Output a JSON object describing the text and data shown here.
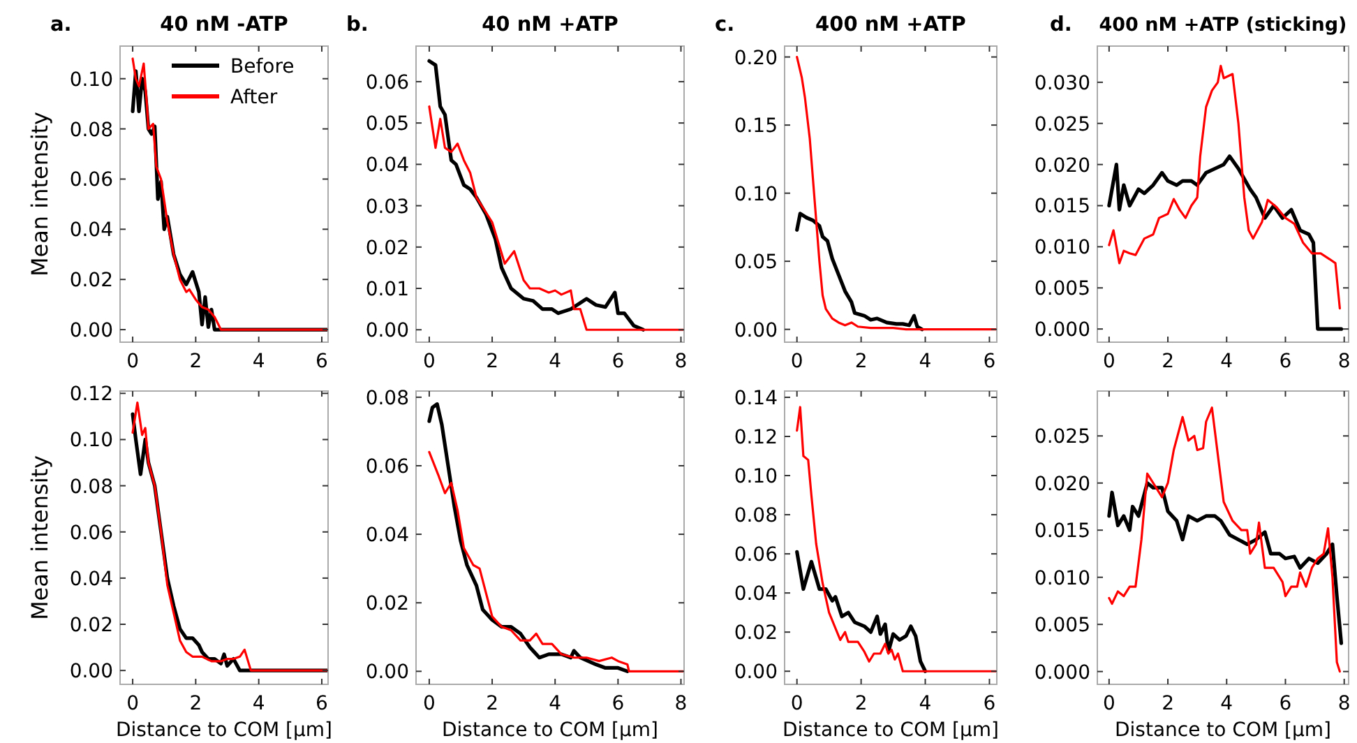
{
  "chart_data": [
    {
      "type": "line",
      "title": "40 nM -ATP",
      "annotations": [
        "a."
      ],
      "ylabel": "Mean intensity",
      "legend": "top right",
      "grid": false,
      "xlim": [
        -0.4,
        6.2
      ],
      "ylim": [
        -0.005,
        0.113
      ],
      "xticks": [
        0,
        2,
        4,
        6
      ],
      "yticks": [
        {
          "value": 0,
          "label": "0.00"
        },
        {
          "value": 0.02,
          "label": "0.02"
        },
        {
          "value": 0.04,
          "label": "0.04"
        },
        {
          "value": 0.06,
          "label": "0.06"
        },
        {
          "value": 0.08,
          "label": "0.08"
        },
        {
          "value": 0.1,
          "label": "0.10"
        }
      ],
      "series": [
        {
          "name": "Before",
          "color": "#000000",
          "x": [
            0,
            0.1,
            0.2,
            0.3,
            0.4,
            0.5,
            0.6,
            0.7,
            0.8,
            0.9,
            1.0,
            1.1,
            1.3,
            1.5,
            1.7,
            1.9,
            2.1,
            2.2,
            2.3,
            2.4,
            2.5,
            2.6,
            2.7,
            6.2
          ],
          "values": [
            0.087,
            0.103,
            0.087,
            0.1,
            0.095,
            0.08,
            0.078,
            0.081,
            0.052,
            0.059,
            0.04,
            0.045,
            0.03,
            0.022,
            0.018,
            0.023,
            0.015,
            0.002,
            0.013,
            0.001,
            0.008,
            0.0,
            0.0,
            0.0
          ]
        },
        {
          "name": "After",
          "color": "#ff0000",
          "x": [
            0,
            0.1,
            0.2,
            0.35,
            0.45,
            0.5,
            0.65,
            0.75,
            0.9,
            1.1,
            1.3,
            1.5,
            1.7,
            1.8,
            2.0,
            2.2,
            2.4,
            2.6,
            2.8,
            6.2
          ],
          "values": [
            0.108,
            0.1,
            0.097,
            0.106,
            0.09,
            0.08,
            0.082,
            0.065,
            0.06,
            0.043,
            0.03,
            0.02,
            0.015,
            0.016,
            0.012,
            0.009,
            0.008,
            0.005,
            0.0,
            0.0
          ]
        }
      ]
    },
    {
      "type": "line",
      "title": "40 nM +ATP",
      "annotations": [
        "b."
      ],
      "grid": false,
      "xlim": [
        -0.42,
        8.1
      ],
      "ylim": [
        -0.003,
        0.0686
      ],
      "xticks": [
        0,
        2,
        4,
        6,
        8
      ],
      "yticks": [
        {
          "value": 0,
          "label": "0.00"
        },
        {
          "value": 0.01,
          "label": "0.01"
        },
        {
          "value": 0.02,
          "label": "0.02"
        },
        {
          "value": 0.03,
          "label": "0.03"
        },
        {
          "value": 0.04,
          "label": "0.04"
        },
        {
          "value": 0.05,
          "label": "0.05"
        },
        {
          "value": 0.06,
          "label": "0.06"
        }
      ],
      "series": [
        {
          "color": "#000000",
          "x": [
            0,
            0.2,
            0.35,
            0.5,
            0.7,
            0.85,
            1.0,
            1.1,
            1.3,
            1.5,
            1.8,
            2.1,
            2.3,
            2.6,
            3.0,
            3.3,
            3.6,
            3.9,
            4.1,
            4.5,
            5.0,
            5.3,
            5.6,
            5.9,
            6.0,
            6.2,
            6.5,
            6.8
          ],
          "values": [
            0.065,
            0.064,
            0.054,
            0.052,
            0.041,
            0.04,
            0.037,
            0.035,
            0.034,
            0.032,
            0.028,
            0.022,
            0.015,
            0.01,
            0.0075,
            0.007,
            0.005,
            0.005,
            0.004,
            0.005,
            0.0075,
            0.006,
            0.0055,
            0.009,
            0.004,
            0.004,
            0.001,
            0.0
          ]
        },
        {
          "color": "#ff0000",
          "x": [
            0,
            0.2,
            0.35,
            0.5,
            0.7,
            0.9,
            1.1,
            1.3,
            1.5,
            2.0,
            2.4,
            2.7,
            3.0,
            3.2,
            3.5,
            3.8,
            4.0,
            4.2,
            4.5,
            4.6,
            4.8,
            5.0,
            8.1
          ],
          "values": [
            0.054,
            0.044,
            0.051,
            0.044,
            0.043,
            0.045,
            0.041,
            0.038,
            0.032,
            0.026,
            0.016,
            0.019,
            0.012,
            0.01,
            0.01,
            0.009,
            0.0095,
            0.0085,
            0.0095,
            0.005,
            0.005,
            0.0,
            0.0
          ]
        }
      ]
    },
    {
      "type": "line",
      "title": "400 nM +ATP",
      "annotations": [
        "c."
      ],
      "grid": false,
      "xlim": [
        -0.385,
        6.23
      ],
      "ylim": [
        -0.0094,
        0.208
      ],
      "xticks": [
        0,
        2,
        4,
        6
      ],
      "yticks": [
        {
          "value": 0,
          "label": "0.00"
        },
        {
          "value": 0.05,
          "label": "0.05"
        },
        {
          "value": 0.1,
          "label": "0.10"
        },
        {
          "value": 0.15,
          "label": "0.15"
        },
        {
          "value": 0.2,
          "label": "0.20"
        }
      ],
      "series": [
        {
          "color": "#000000",
          "x": [
            0,
            0.1,
            0.3,
            0.5,
            0.7,
            0.8,
            0.95,
            1.1,
            1.3,
            1.5,
            1.7,
            1.8,
            2.1,
            2.3,
            2.5,
            2.8,
            3.1,
            3.3,
            3.5,
            3.65,
            3.75,
            3.9
          ],
          "values": [
            0.073,
            0.085,
            0.082,
            0.08,
            0.076,
            0.068,
            0.065,
            0.052,
            0.04,
            0.028,
            0.02,
            0.012,
            0.01,
            0.007,
            0.008,
            0.005,
            0.004,
            0.004,
            0.003,
            0.01,
            0.002,
            0.0
          ]
        },
        {
          "color": "#ff0000",
          "x": [
            0,
            0.15,
            0.25,
            0.4,
            0.5,
            0.6,
            0.7,
            0.8,
            0.9,
            1.1,
            1.3,
            1.5,
            1.7,
            1.9,
            2.3,
            3.0,
            3.4,
            6.2
          ],
          "values": [
            0.2,
            0.185,
            0.17,
            0.14,
            0.11,
            0.08,
            0.05,
            0.025,
            0.015,
            0.008,
            0.005,
            0.003,
            0.005,
            0.002,
            0.001,
            0.001,
            0.0,
            0.0
          ]
        }
      ]
    },
    {
      "type": "line",
      "title": "400 nM +ATP (sticking)",
      "annotations": [
        "d."
      ],
      "grid": false,
      "xlim": [
        -0.4,
        8.15
      ],
      "ylim": [
        -0.0016,
        0.0344
      ],
      "xticks": [
        0,
        2,
        4,
        6,
        8
      ],
      "yticks": [
        {
          "value": 0,
          "label": "0.000"
        },
        {
          "value": 0.005,
          "label": "0.005"
        },
        {
          "value": 0.01,
          "label": "0.010"
        },
        {
          "value": 0.015,
          "label": "0.015"
        },
        {
          "value": 0.02,
          "label": "0.020"
        },
        {
          "value": 0.025,
          "label": "0.025"
        },
        {
          "value": 0.03,
          "label": "0.030"
        }
      ],
      "series": [
        {
          "color": "#000000",
          "x": [
            0,
            0.1,
            0.25,
            0.35,
            0.5,
            0.7,
            1.0,
            1.2,
            1.5,
            1.8,
            2.0,
            2.3,
            2.5,
            2.8,
            3.0,
            3.3,
            3.6,
            3.9,
            4.1,
            4.4,
            4.8,
            5.0,
            5.3,
            5.6,
            5.9,
            6.2,
            6.5,
            6.8,
            6.95,
            7.1,
            7.9
          ],
          "values": [
            0.015,
            0.017,
            0.02,
            0.0145,
            0.0175,
            0.015,
            0.017,
            0.0165,
            0.0175,
            0.019,
            0.018,
            0.0175,
            0.018,
            0.018,
            0.0175,
            0.019,
            0.0195,
            0.02,
            0.021,
            0.0195,
            0.017,
            0.016,
            0.0135,
            0.015,
            0.0135,
            0.0145,
            0.012,
            0.0115,
            0.0105,
            0.0,
            0.0
          ]
        },
        {
          "color": "#ff0000",
          "x": [
            0,
            0.15,
            0.35,
            0.5,
            0.7,
            0.9,
            1.2,
            1.5,
            1.7,
            2.0,
            2.2,
            2.4,
            2.6,
            2.8,
            3.0,
            3.1,
            3.3,
            3.5,
            3.7,
            3.8,
            3.9,
            4.2,
            4.4,
            4.6,
            4.75,
            4.9,
            5.2,
            5.4,
            5.7,
            6.0,
            6.3,
            6.6,
            6.9,
            7.2,
            7.5,
            7.7,
            7.85
          ],
          "values": [
            0.0102,
            0.012,
            0.008,
            0.0095,
            0.0092,
            0.009,
            0.011,
            0.0115,
            0.0135,
            0.014,
            0.0158,
            0.0145,
            0.0135,
            0.015,
            0.016,
            0.021,
            0.027,
            0.029,
            0.03,
            0.032,
            0.0305,
            0.031,
            0.025,
            0.016,
            0.012,
            0.011,
            0.013,
            0.0157,
            0.0148,
            0.0135,
            0.0128,
            0.0105,
            0.0092,
            0.0092,
            0.0085,
            0.008,
            0.0025
          ]
        }
      ]
    },
    {
      "type": "line",
      "xlabel": "Distance to COM [µm]",
      "ylabel": "Mean intensity",
      "grid": false,
      "xlim": [
        -0.4,
        6.2
      ],
      "ylim": [
        -0.006,
        0.121
      ],
      "xticks": [
        0,
        2,
        4,
        6
      ],
      "yticks": [
        {
          "value": 0,
          "label": "0.00"
        },
        {
          "value": 0.02,
          "label": "0.02"
        },
        {
          "value": 0.04,
          "label": "0.04"
        },
        {
          "value": 0.06,
          "label": "0.06"
        },
        {
          "value": 0.08,
          "label": "0.08"
        },
        {
          "value": 0.1,
          "label": "0.10"
        },
        {
          "value": 0.12,
          "label": "0.12"
        }
      ],
      "series": [
        {
          "color": "#000000",
          "x": [
            0,
            0.1,
            0.25,
            0.4,
            0.5,
            0.7,
            0.9,
            1.1,
            1.3,
            1.5,
            1.7,
            1.9,
            2.1,
            2.2,
            2.4,
            2.6,
            2.8,
            2.9,
            3.0,
            3.2,
            3.4,
            3.7,
            6.2
          ],
          "values": [
            0.111,
            0.1,
            0.085,
            0.1,
            0.09,
            0.08,
            0.06,
            0.04,
            0.028,
            0.018,
            0.014,
            0.014,
            0.011,
            0.008,
            0.005,
            0.005,
            0.003,
            0.007,
            0.002,
            0.005,
            0.0,
            0.0,
            0.0
          ]
        },
        {
          "color": "#ff0000",
          "x": [
            0,
            0.15,
            0.3,
            0.4,
            0.5,
            0.7,
            0.9,
            1.1,
            1.3,
            1.5,
            1.7,
            1.9,
            2.2,
            2.5,
            2.8,
            3.0,
            3.2,
            3.4,
            3.55,
            3.75,
            6.2
          ],
          "values": [
            0.103,
            0.116,
            0.102,
            0.105,
            0.09,
            0.08,
            0.06,
            0.037,
            0.025,
            0.013,
            0.008,
            0.006,
            0.006,
            0.004,
            0.004,
            0.005,
            0.005,
            0.006,
            0.009,
            0.0,
            0.0
          ]
        }
      ]
    },
    {
      "type": "line",
      "xlabel": "Distance to COM [µm]",
      "grid": false,
      "xlim": [
        -0.42,
        8.1
      ],
      "ylim": [
        -0.0038,
        0.0818
      ],
      "xticks": [
        0,
        2,
        4,
        6,
        8
      ],
      "yticks": [
        {
          "value": 0,
          "label": "0.00"
        },
        {
          "value": 0.02,
          "label": "0.02"
        },
        {
          "value": 0.04,
          "label": "0.04"
        },
        {
          "value": 0.06,
          "label": "0.06"
        },
        {
          "value": 0.08,
          "label": "0.08"
        }
      ],
      "series": [
        {
          "color": "#000000",
          "x": [
            0,
            0.1,
            0.25,
            0.4,
            0.6,
            0.8,
            1.0,
            1.2,
            1.5,
            1.7,
            2.0,
            2.3,
            2.6,
            2.9,
            3.2,
            3.5,
            3.8,
            4.2,
            4.5,
            4.6,
            4.8,
            5.3,
            5.6,
            6.0,
            6.3
          ],
          "values": [
            0.073,
            0.077,
            0.078,
            0.072,
            0.06,
            0.048,
            0.038,
            0.031,
            0.025,
            0.018,
            0.015,
            0.013,
            0.013,
            0.011,
            0.007,
            0.004,
            0.005,
            0.005,
            0.004,
            0.006,
            0.004,
            0.002,
            0.001,
            0.001,
            0.0
          ]
        },
        {
          "color": "#ff0000",
          "x": [
            0,
            0.3,
            0.5,
            0.7,
            0.9,
            1.1,
            1.4,
            1.6,
            1.8,
            2.0,
            2.3,
            2.6,
            2.9,
            3.2,
            3.4,
            3.6,
            3.9,
            4.2,
            4.6,
            5.0,
            5.4,
            5.8,
            6.0,
            6.3,
            6.35,
            8.1
          ],
          "values": [
            0.064,
            0.057,
            0.052,
            0.055,
            0.047,
            0.036,
            0.031,
            0.03,
            0.023,
            0.016,
            0.013,
            0.012,
            0.009,
            0.009,
            0.011,
            0.008,
            0.008,
            0.005,
            0.004,
            0.004,
            0.003,
            0.004,
            0.003,
            0.002,
            0.0,
            0.0
          ]
        }
      ]
    },
    {
      "type": "line",
      "xlabel": "Distance to COM [µm]",
      "grid": false,
      "xlim": [
        -0.385,
        6.23
      ],
      "ylim": [
        -0.0067,
        0.1432
      ],
      "xticks": [
        0,
        2,
        4,
        6
      ],
      "yticks": [
        {
          "value": 0,
          "label": "0.00"
        },
        {
          "value": 0.02,
          "label": "0.02"
        },
        {
          "value": 0.04,
          "label": "0.04"
        },
        {
          "value": 0.06,
          "label": "0.06"
        },
        {
          "value": 0.08,
          "label": "0.08"
        },
        {
          "value": 0.1,
          "label": "0.10"
        },
        {
          "value": 0.12,
          "label": "0.12"
        },
        {
          "value": 0.14,
          "label": "0.14"
        }
      ],
      "series": [
        {
          "color": "#000000",
          "x": [
            0,
            0.2,
            0.45,
            0.7,
            0.9,
            1.1,
            1.2,
            1.4,
            1.6,
            1.8,
            2.1,
            2.3,
            2.5,
            2.6,
            2.75,
            2.85,
            3.0,
            3.2,
            3.4,
            3.55,
            3.7,
            3.85,
            4.0
          ],
          "values": [
            0.061,
            0.042,
            0.056,
            0.042,
            0.042,
            0.036,
            0.038,
            0.028,
            0.03,
            0.025,
            0.023,
            0.02,
            0.028,
            0.019,
            0.024,
            0.01,
            0.019,
            0.016,
            0.018,
            0.023,
            0.018,
            0.005,
            0.0
          ]
        },
        {
          "color": "#ff0000",
          "x": [
            0,
            0.1,
            0.2,
            0.35,
            0.45,
            0.6,
            0.8,
            1.0,
            1.2,
            1.35,
            1.5,
            1.6,
            1.9,
            2.1,
            2.25,
            2.4,
            2.6,
            2.75,
            2.85,
            2.95,
            3.05,
            3.15,
            3.3,
            6.2
          ],
          "values": [
            0.123,
            0.135,
            0.11,
            0.108,
            0.09,
            0.065,
            0.045,
            0.03,
            0.022,
            0.016,
            0.02,
            0.015,
            0.015,
            0.01,
            0.005,
            0.009,
            0.009,
            0.014,
            0.009,
            0.011,
            0.006,
            0.009,
            0.0,
            0.0
          ]
        }
      ]
    },
    {
      "type": "line",
      "xlabel": "Distance to COM [µm]",
      "grid": false,
      "xlim": [
        -0.4,
        8.15
      ],
      "ylim": [
        -0.00136,
        0.02976
      ],
      "xticks": [
        0,
        2,
        4,
        6,
        8
      ],
      "yticks": [
        {
          "value": 0,
          "label": "0.000"
        },
        {
          "value": 0.005,
          "label": "0.005"
        },
        {
          "value": 0.01,
          "label": "0.010"
        },
        {
          "value": 0.015,
          "label": "0.015"
        },
        {
          "value": 0.02,
          "label": "0.020"
        },
        {
          "value": 0.025,
          "label": "0.025"
        }
      ],
      "series": [
        {
          "color": "#000000",
          "x": [
            0,
            0.1,
            0.3,
            0.5,
            0.7,
            0.8,
            1.0,
            1.3,
            1.5,
            1.8,
            2.0,
            2.3,
            2.5,
            2.7,
            3.0,
            3.3,
            3.6,
            3.8,
            4.1,
            4.4,
            4.7,
            5.0,
            5.3,
            5.5,
            5.8,
            6.0,
            6.3,
            6.5,
            6.8,
            7.1,
            7.4,
            7.6,
            7.75,
            7.9
          ],
          "values": [
            0.0165,
            0.019,
            0.0155,
            0.0165,
            0.015,
            0.0175,
            0.0165,
            0.02,
            0.0195,
            0.0195,
            0.017,
            0.016,
            0.014,
            0.0165,
            0.016,
            0.0165,
            0.0165,
            0.016,
            0.0145,
            0.014,
            0.0135,
            0.014,
            0.0148,
            0.0125,
            0.0125,
            0.012,
            0.0122,
            0.011,
            0.012,
            0.0115,
            0.0125,
            0.0135,
            0.008,
            0.003
          ]
        },
        {
          "color": "#ff0000",
          "x": [
            0,
            0.1,
            0.3,
            0.5,
            0.7,
            0.9,
            1.1,
            1.3,
            1.5,
            1.8,
            2.0,
            2.2,
            2.5,
            2.7,
            2.9,
            3.0,
            3.2,
            3.3,
            3.5,
            3.7,
            3.9,
            4.2,
            4.5,
            4.7,
            4.8,
            5.0,
            5.1,
            5.3,
            5.6,
            5.9,
            6.0,
            6.2,
            6.4,
            6.5,
            6.7,
            6.9,
            7.1,
            7.3,
            7.45,
            7.6,
            7.75,
            7.85
          ],
          "values": [
            0.0078,
            0.0072,
            0.0085,
            0.008,
            0.009,
            0.009,
            0.014,
            0.021,
            0.02,
            0.0185,
            0.02,
            0.0235,
            0.027,
            0.0245,
            0.025,
            0.0235,
            0.0237,
            0.0265,
            0.028,
            0.023,
            0.018,
            0.016,
            0.015,
            0.015,
            0.0125,
            0.0135,
            0.0158,
            0.011,
            0.011,
            0.0095,
            0.008,
            0.009,
            0.009,
            0.0105,
            0.009,
            0.011,
            0.012,
            0.0125,
            0.0152,
            0.01,
            0.001,
            0.0
          ]
        }
      ]
    }
  ]
}
